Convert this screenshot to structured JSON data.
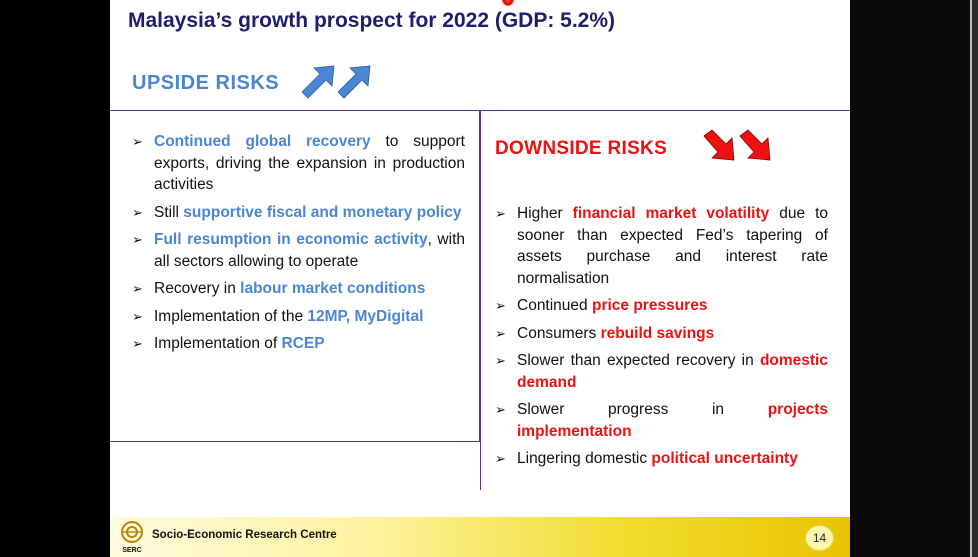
{
  "title": "Malaysia’s growth prospect for 2022 (GDP: 5.2%)",
  "upside": {
    "heading": "UPSIDE RISKS",
    "items": [
      {
        "parts": [
          {
            "t": "Continued global recovery",
            "c": "blue"
          },
          {
            "t": " to support exports, driving the expansion in production activities",
            "c": ""
          }
        ]
      },
      {
        "parts": [
          {
            "t": "Still ",
            "c": ""
          },
          {
            "t": "supportive fiscal and monetary policy",
            "c": "blue"
          }
        ]
      },
      {
        "parts": [
          {
            "t": "Full resumption in economic activity",
            "c": "blue"
          },
          {
            "t": ", with all sectors allowing to operate",
            "c": ""
          }
        ]
      },
      {
        "parts": [
          {
            "t": "Recovery in ",
            "c": ""
          },
          {
            "t": "labour market conditions",
            "c": "blue"
          }
        ]
      },
      {
        "parts": [
          {
            "t": "Implementation of the ",
            "c": ""
          },
          {
            "t": "12MP, MyDigital",
            "c": "blue"
          }
        ]
      },
      {
        "parts": [
          {
            "t": "Implementation of ",
            "c": ""
          },
          {
            "t": "RCEP",
            "c": "blue"
          }
        ]
      }
    ]
  },
  "downside": {
    "heading": "DOWNSIDE RISKS",
    "items": [
      {
        "parts": [
          {
            "t": "Higher ",
            "c": ""
          },
          {
            "t": "financial market volatility",
            "c": "red"
          },
          {
            "t": " due to sooner than expected Fed’s tapering of assets purchase and interest rate normalisation",
            "c": ""
          }
        ]
      },
      {
        "parts": [
          {
            "t": "Continued ",
            "c": ""
          },
          {
            "t": "price pressures",
            "c": "red"
          }
        ]
      },
      {
        "parts": [
          {
            "t": "Consumers ",
            "c": ""
          },
          {
            "t": "rebuild savings",
            "c": "red"
          }
        ]
      },
      {
        "parts": [
          {
            "t": "Slower than expected recovery in ",
            "c": ""
          },
          {
            "t": "domestic demand",
            "c": "red"
          }
        ]
      },
      {
        "parts": [
          {
            "t": "Slower progress in ",
            "c": ""
          },
          {
            "t": "projects implementation",
            "c": "red"
          }
        ]
      },
      {
        "parts": [
          {
            "t": "Lingering domestic ",
            "c": ""
          },
          {
            "t": "political uncertainty",
            "c": "red"
          }
        ]
      }
    ]
  },
  "footer": {
    "org": "Socio-Economic Research Centre",
    "logo_text": "SERC",
    "page": "14"
  },
  "icons": {
    "bullet": "arrow-bullet-icon",
    "upside_arrows": "up-arrow-icon",
    "downside_arrows": "down-arrow-icon"
  },
  "colors": {
    "title": "#1d1f6b",
    "upside": "#4a86d4",
    "downside": "#ee1111",
    "box_border": "#6a2a8c"
  }
}
